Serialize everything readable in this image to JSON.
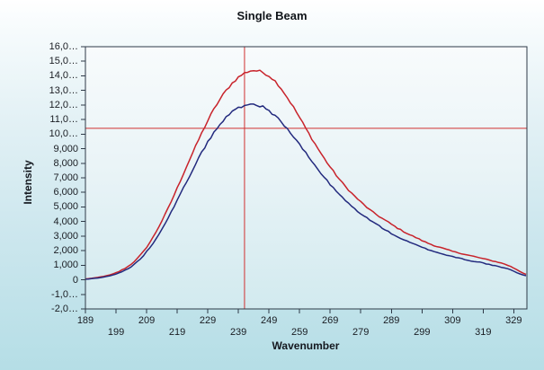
{
  "window": {
    "title": "Single Beam"
  },
  "colors": {
    "series_red": "#c8232b",
    "series_blue": "#232a7e",
    "crosshair": "#d03030",
    "frame": "#2e3947",
    "tick_text": "#191c22",
    "title_text": "#101419"
  },
  "chart_data": {
    "type": "line",
    "title": "Single Beam",
    "xlabel": "Wavenumber",
    "ylabel": "Intensity",
    "xlim": [
      189,
      333.3
    ],
    "ylim": [
      -2000,
      16000
    ],
    "grid": false,
    "legend": "none",
    "x_ticks": [
      189,
      199,
      209,
      219,
      229,
      239,
      249,
      259,
      269,
      279,
      289,
      299,
      309,
      319,
      329
    ],
    "x_tick_labels": [
      "189",
      "199",
      "209",
      "219",
      "229",
      "239",
      "249",
      "259",
      "269",
      "279",
      "289",
      "299",
      "309",
      "319",
      "329"
    ],
    "y_ticks": [
      16000,
      15000,
      14000,
      13000,
      12000,
      11000,
      10000,
      9000,
      8000,
      7000,
      6000,
      5000,
      4000,
      3000,
      2000,
      1000,
      0,
      -1000,
      -2000
    ],
    "y_tick_labels": [
      "16,0…",
      "15,0…",
      "14,0…",
      "13,0…",
      "12,0…",
      "11,0…",
      "10,0…",
      "9,000",
      "8,000",
      "7,000",
      "6,000",
      "5,000",
      "4,000",
      "3,000",
      "2,000",
      "1,000",
      "0",
      "-1,0…",
      "-2,0…"
    ],
    "x": [
      189,
      192,
      195,
      198,
      201,
      204,
      207,
      210,
      213,
      216,
      219,
      222,
      225,
      228,
      231,
      234,
      237,
      240,
      243,
      246,
      249,
      252,
      255,
      258,
      261,
      264,
      267,
      270,
      273,
      276,
      279,
      282,
      285,
      288,
      291,
      294,
      297,
      300,
      303,
      306,
      309,
      312,
      315,
      318,
      321,
      324,
      327,
      330,
      333
    ],
    "series": [
      {
        "name": "red-spectrum",
        "color": "#c8232b",
        "values": [
          60,
          130,
          240,
          400,
          680,
          1080,
          1700,
          2550,
          3650,
          4900,
          6300,
          7750,
          9150,
          10500,
          11700,
          12700,
          13500,
          14050,
          14350,
          14300,
          14000,
          13400,
          12500,
          11500,
          10400,
          9350,
          8350,
          7450,
          6650,
          5950,
          5350,
          4800,
          4350,
          3950,
          3550,
          3200,
          2900,
          2600,
          2350,
          2150,
          1950,
          1800,
          1650,
          1500,
          1350,
          1200,
          1000,
          700,
          380
        ]
      },
      {
        "name": "blue-spectrum",
        "color": "#232a7e",
        "values": [
          40,
          100,
          190,
          330,
          560,
          900,
          1450,
          2200,
          3150,
          4250,
          5450,
          6700,
          7950,
          9100,
          10100,
          10900,
          11550,
          11900,
          12050,
          11950,
          11600,
          11050,
          10350,
          9550,
          8700,
          7850,
          7050,
          6300,
          5650,
          5050,
          4550,
          4100,
          3700,
          3300,
          2950,
          2650,
          2400,
          2150,
          1950,
          1750,
          1600,
          1450,
          1300,
          1200,
          1050,
          900,
          750,
          500,
          280
        ]
      }
    ],
    "crosshair": {
      "x": 241,
      "y": 10400
    }
  }
}
